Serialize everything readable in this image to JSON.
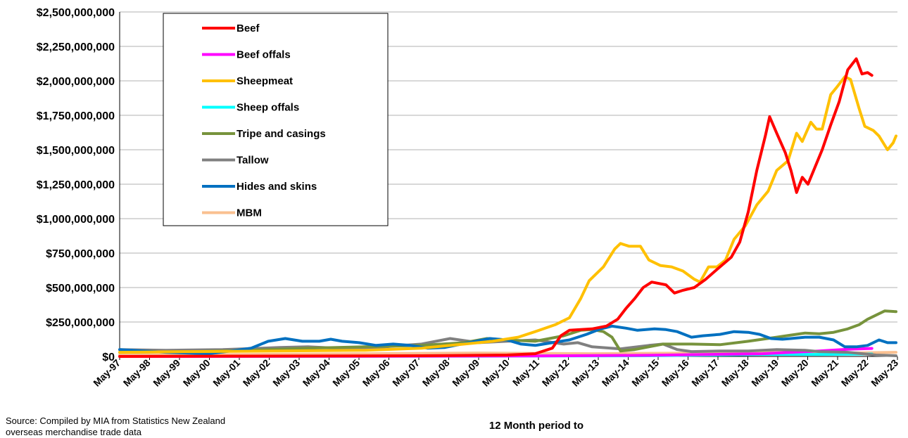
{
  "chart_data": {
    "type": "line",
    "title": "",
    "xlabel": "12 Month period to",
    "ylabel": "",
    "ylim": [
      0,
      2500000000
    ],
    "y_ticks": [
      "$0",
      "$250,000,000",
      "$500,000,000",
      "$750,000,000",
      "$1,000,000,000",
      "$1,250,000,000",
      "$1,500,000,000",
      "$1,750,000,000",
      "$2,000,000,000",
      "$2,250,000,000",
      "$2,500,000,000"
    ],
    "x_ticks": [
      "May-97",
      "May-98",
      "May-99",
      "May-00",
      "May-01",
      "May-02",
      "May-03",
      "May-04",
      "May-05",
      "May-06",
      "May-07",
      "May-08",
      "May-09",
      "May-10",
      "May-11",
      "May-12",
      "May-13",
      "May-14",
      "May-15",
      "May-16",
      "May-17",
      "May-18",
      "May-19",
      "May-20",
      "May-21",
      "May-22",
      "May-23"
    ],
    "grid": "horizontal",
    "legend_position": "top-left",
    "series": [
      {
        "name": "Beef",
        "color": "#ff0000",
        "points": [
          [
            1997.37,
            0
          ],
          [
            2008.0,
            5000000
          ],
          [
            2011.0,
            10000000
          ],
          [
            2012.0,
            20000000
          ],
          [
            2012.6,
            60000000
          ],
          [
            2012.9,
            150000000
          ],
          [
            2013.2,
            190000000
          ],
          [
            2013.6,
            195000000
          ],
          [
            2014.0,
            200000000
          ],
          [
            2014.5,
            220000000
          ],
          [
            2014.9,
            270000000
          ],
          [
            2015.2,
            350000000
          ],
          [
            2015.5,
            420000000
          ],
          [
            2015.8,
            500000000
          ],
          [
            2016.1,
            540000000
          ],
          [
            2016.6,
            520000000
          ],
          [
            2016.9,
            460000000
          ],
          [
            2017.2,
            480000000
          ],
          [
            2017.6,
            500000000
          ],
          [
            2018.0,
            560000000
          ],
          [
            2018.5,
            650000000
          ],
          [
            2018.9,
            720000000
          ],
          [
            2019.2,
            830000000
          ],
          [
            2019.5,
            1050000000
          ],
          [
            2019.8,
            1350000000
          ],
          [
            2020.1,
            1600000000
          ],
          [
            2020.25,
            1740000000
          ],
          [
            2020.5,
            1620000000
          ],
          [
            2020.8,
            1480000000
          ],
          [
            2021.0,
            1350000000
          ],
          [
            2021.2,
            1190000000
          ],
          [
            2021.4,
            1300000000
          ],
          [
            2021.6,
            1250000000
          ],
          [
            2021.9,
            1400000000
          ],
          [
            2022.1,
            1500000000
          ],
          [
            2022.4,
            1680000000
          ],
          [
            2022.7,
            1850000000
          ],
          [
            2023.0,
            2080000000
          ],
          [
            2023.3,
            2160000000
          ],
          [
            2023.5,
            2050000000
          ],
          [
            2023.7,
            2060000000
          ],
          [
            2023.85,
            2040000000
          ]
        ]
      },
      {
        "name": "Beef offals",
        "color": "#ff00ff",
        "points": [
          [
            1997.37,
            0
          ],
          [
            2005.0,
            1000000
          ],
          [
            2012.0,
            4000000
          ],
          [
            2016.0,
            8000000
          ],
          [
            2020.0,
            20000000
          ],
          [
            2022.0,
            40000000
          ],
          [
            2023.0,
            52000000
          ],
          [
            2023.85,
            58000000
          ]
        ]
      },
      {
        "name": "Sheepmeat",
        "color": "#ffc000",
        "points": [
          [
            1997.37,
            30000000
          ],
          [
            2000.0,
            35000000
          ],
          [
            2003.0,
            40000000
          ],
          [
            2006.0,
            45000000
          ],
          [
            2008.0,
            60000000
          ],
          [
            2009.5,
            90000000
          ],
          [
            2010.5,
            110000000
          ],
          [
            2011.4,
            140000000
          ],
          [
            2012.0,
            180000000
          ],
          [
            2012.7,
            230000000
          ],
          [
            2013.2,
            280000000
          ],
          [
            2013.6,
            420000000
          ],
          [
            2013.9,
            550000000
          ],
          [
            2014.4,
            650000000
          ],
          [
            2014.8,
            780000000
          ],
          [
            2015.0,
            820000000
          ],
          [
            2015.3,
            800000000
          ],
          [
            2015.7,
            800000000
          ],
          [
            2016.0,
            700000000
          ],
          [
            2016.4,
            660000000
          ],
          [
            2016.8,
            650000000
          ],
          [
            2017.2,
            620000000
          ],
          [
            2017.6,
            560000000
          ],
          [
            2017.8,
            540000000
          ],
          [
            2018.1,
            650000000
          ],
          [
            2018.4,
            650000000
          ],
          [
            2018.7,
            700000000
          ],
          [
            2019.0,
            850000000
          ],
          [
            2019.4,
            950000000
          ],
          [
            2019.8,
            1100000000
          ],
          [
            2020.2,
            1200000000
          ],
          [
            2020.5,
            1350000000
          ],
          [
            2020.9,
            1420000000
          ],
          [
            2021.2,
            1620000000
          ],
          [
            2021.4,
            1560000000
          ],
          [
            2021.7,
            1700000000
          ],
          [
            2021.9,
            1650000000
          ],
          [
            2022.1,
            1650000000
          ],
          [
            2022.4,
            1900000000
          ],
          [
            2022.6,
            1950000000
          ],
          [
            2022.9,
            2030000000
          ],
          [
            2023.1,
            2010000000
          ],
          [
            2023.4,
            1800000000
          ],
          [
            2023.6,
            1670000000
          ],
          [
            2023.9,
            1640000000
          ],
          [
            2024.1,
            1600000000
          ],
          [
            2024.4,
            1500000000
          ],
          [
            2024.6,
            1550000000
          ],
          [
            2024.7,
            1600000000
          ]
        ]
      },
      {
        "name": "Sheep offals",
        "color": "#00ffff",
        "points": [
          [
            1997.37,
            0
          ],
          [
            2010.0,
            2000000
          ],
          [
            2016.0,
            5000000
          ],
          [
            2018.0,
            10000000
          ],
          [
            2020.0,
            15000000
          ],
          [
            2022.0,
            15000000
          ],
          [
            2023.85,
            18000000
          ]
        ]
      },
      {
        "name": "Tripe and casings",
        "color": "#77933c",
        "points": [
          [
            1997.37,
            30000000
          ],
          [
            2000.0,
            35000000
          ],
          [
            2002.0,
            45000000
          ],
          [
            2004.0,
            60000000
          ],
          [
            2006.0,
            70000000
          ],
          [
            2008.0,
            80000000
          ],
          [
            2009.5,
            100000000
          ],
          [
            2010.3,
            130000000
          ],
          [
            2011.0,
            120000000
          ],
          [
            2012.0,
            110000000
          ],
          [
            2013.0,
            150000000
          ],
          [
            2013.6,
            190000000
          ],
          [
            2014.0,
            195000000
          ],
          [
            2014.4,
            180000000
          ],
          [
            2014.7,
            140000000
          ],
          [
            2015.0,
            40000000
          ],
          [
            2015.5,
            50000000
          ],
          [
            2016.5,
            90000000
          ],
          [
            2017.5,
            90000000
          ],
          [
            2018.5,
            85000000
          ],
          [
            2019.5,
            110000000
          ],
          [
            2020.5,
            140000000
          ],
          [
            2021.0,
            155000000
          ],
          [
            2021.5,
            170000000
          ],
          [
            2022.0,
            165000000
          ],
          [
            2022.5,
            175000000
          ],
          [
            2023.0,
            200000000
          ],
          [
            2023.4,
            230000000
          ],
          [
            2023.7,
            270000000
          ],
          [
            2024.0,
            300000000
          ],
          [
            2024.3,
            330000000
          ],
          [
            2024.7,
            325000000
          ]
        ]
      },
      {
        "name": "Tallow",
        "color": "#808080",
        "points": [
          [
            1997.37,
            50000000
          ],
          [
            1999.0,
            45000000
          ],
          [
            2001.0,
            50000000
          ],
          [
            2003.0,
            65000000
          ],
          [
            2004.0,
            70000000
          ],
          [
            2005.0,
            60000000
          ],
          [
            2006.0,
            55000000
          ],
          [
            2007.0,
            75000000
          ],
          [
            2008.0,
            90000000
          ],
          [
            2009.0,
            130000000
          ],
          [
            2010.0,
            100000000
          ],
          [
            2011.0,
            110000000
          ],
          [
            2012.0,
            120000000
          ],
          [
            2013.0,
            90000000
          ],
          [
            2013.5,
            100000000
          ],
          [
            2014.0,
            70000000
          ],
          [
            2015.0,
            55000000
          ],
          [
            2016.0,
            80000000
          ],
          [
            2016.5,
            90000000
          ],
          [
            2017.0,
            50000000
          ],
          [
            2017.5,
            35000000
          ],
          [
            2018.5,
            40000000
          ],
          [
            2019.5,
            40000000
          ],
          [
            2020.5,
            50000000
          ],
          [
            2021.5,
            45000000
          ],
          [
            2022.0,
            35000000
          ],
          [
            2023.0,
            30000000
          ],
          [
            2024.0,
            10000000
          ],
          [
            2024.7,
            5000000
          ]
        ]
      },
      {
        "name": "Hides and skins",
        "color": "#0070c0",
        "points": [
          [
            1997.37,
            50000000
          ],
          [
            1999.0,
            30000000
          ],
          [
            2000.5,
            20000000
          ],
          [
            2001.3,
            40000000
          ],
          [
            2002.0,
            60000000
          ],
          [
            2002.6,
            110000000
          ],
          [
            2003.2,
            130000000
          ],
          [
            2003.8,
            110000000
          ],
          [
            2004.4,
            110000000
          ],
          [
            2004.8,
            125000000
          ],
          [
            2005.2,
            110000000
          ],
          [
            2005.8,
            100000000
          ],
          [
            2006.4,
            80000000
          ],
          [
            2007.0,
            90000000
          ],
          [
            2007.6,
            80000000
          ],
          [
            2008.2,
            60000000
          ],
          [
            2008.8,
            65000000
          ],
          [
            2009.4,
            90000000
          ],
          [
            2009.9,
            110000000
          ],
          [
            2010.4,
            130000000
          ],
          [
            2011.0,
            120000000
          ],
          [
            2011.5,
            90000000
          ],
          [
            2012.0,
            80000000
          ],
          [
            2012.6,
            100000000
          ],
          [
            2013.2,
            120000000
          ],
          [
            2013.8,
            160000000
          ],
          [
            2014.3,
            200000000
          ],
          [
            2014.7,
            220000000
          ],
          [
            2015.2,
            205000000
          ],
          [
            2015.6,
            190000000
          ],
          [
            2016.2,
            200000000
          ],
          [
            2016.6,
            195000000
          ],
          [
            2017.0,
            180000000
          ],
          [
            2017.5,
            140000000
          ],
          [
            2017.9,
            150000000
          ],
          [
            2018.5,
            160000000
          ],
          [
            2019.0,
            180000000
          ],
          [
            2019.5,
            175000000
          ],
          [
            2019.9,
            160000000
          ],
          [
            2020.3,
            130000000
          ],
          [
            2020.7,
            125000000
          ],
          [
            2021.0,
            130000000
          ],
          [
            2021.5,
            140000000
          ],
          [
            2022.0,
            140000000
          ],
          [
            2022.5,
            120000000
          ],
          [
            2022.9,
            70000000
          ],
          [
            2023.3,
            70000000
          ],
          [
            2023.7,
            80000000
          ],
          [
            2024.1,
            120000000
          ],
          [
            2024.4,
            100000000
          ],
          [
            2024.7,
            100000000
          ]
        ]
      },
      {
        "name": "MBM",
        "color": "#fac090",
        "points": [
          [
            1997.37,
            10000000
          ],
          [
            2002.0,
            15000000
          ],
          [
            2006.0,
            20000000
          ],
          [
            2010.0,
            25000000
          ],
          [
            2014.0,
            20000000
          ],
          [
            2018.0,
            25000000
          ],
          [
            2021.0,
            30000000
          ],
          [
            2023.0,
            25000000
          ],
          [
            2024.7,
            30000000
          ]
        ]
      }
    ]
  },
  "source_note": "Source: Compiled by MIA from Statistics New Zealand overseas merchandise trade data"
}
